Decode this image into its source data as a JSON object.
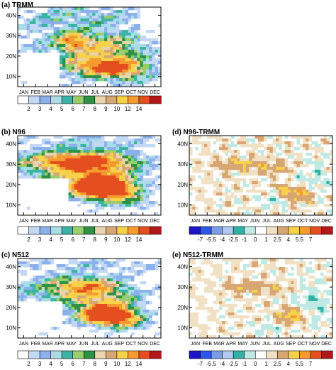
{
  "chart_data": [
    {
      "type": "heatmap",
      "title": "(a) TRMM",
      "x_ticks": [
        "JAN",
        "FEB",
        "MAR",
        "APR",
        "MAY",
        "JUN",
        "JUL",
        "AUG",
        "SEP",
        "OCT",
        "NOV",
        "DEC"
      ],
      "y_ticks": [
        "10N",
        "20N",
        "30N",
        "40N"
      ],
      "ylim": [
        5,
        44
      ],
      "colorbar": {
        "levels": [
          "2",
          "3",
          "4",
          "5",
          "6",
          "7",
          "8",
          "9",
          "10",
          "12",
          "14"
        ]
      },
      "field": "absolute"
    },
    {
      "type": "heatmap",
      "title": "(b) N96",
      "x_ticks": [
        "JAN",
        "FEB",
        "MAR",
        "APR",
        "MAY",
        "JUN",
        "JUL",
        "AUG",
        "SEP",
        "OCT",
        "NOV",
        "DEC"
      ],
      "y_ticks": [
        "10N",
        "20N",
        "30N",
        "40N"
      ],
      "ylim": [
        5,
        44
      ],
      "colorbar": {
        "levels": [
          "2",
          "3",
          "4",
          "5",
          "6",
          "7",
          "8",
          "9",
          "10",
          "12",
          "14"
        ]
      },
      "field": "absolute"
    },
    {
      "type": "heatmap",
      "title": "(c) N512",
      "x_ticks": [
        "JAN",
        "FEB",
        "MAR",
        "APR",
        "MAY",
        "JUN",
        "JUL",
        "AUG",
        "SEP",
        "OCT",
        "NOV",
        "DEC"
      ],
      "y_ticks": [
        "10N",
        "20N",
        "30N",
        "40N"
      ],
      "ylim": [
        5,
        44
      ],
      "colorbar": {
        "levels": [
          "2",
          "3",
          "4",
          "5",
          "6",
          "7",
          "8",
          "9",
          "10",
          "12",
          "14"
        ]
      },
      "field": "absolute"
    },
    {
      "type": "heatmap",
      "title": "(d) N96-TRMM",
      "x_ticks": [
        "JAN",
        "FEB",
        "MAR",
        "APR",
        "MAY",
        "JUN",
        "JUL",
        "AUG",
        "SEP",
        "OCT",
        "NOV",
        "DEC"
      ],
      "y_ticks": [
        "10N",
        "20N",
        "30N",
        "40N"
      ],
      "ylim": [
        5,
        44
      ],
      "colorbar": {
        "levels": [
          "-7",
          "-5.5",
          "-4",
          "-2.5",
          "-1",
          "0",
          "1",
          "2.5",
          "4",
          "5.5",
          "7"
        ]
      },
      "field": "difference"
    },
    {
      "type": "heatmap",
      "title": "(e) N512-TRMM",
      "x_ticks": [
        "JAN",
        "FEB",
        "MAR",
        "APR",
        "MAY",
        "JUN",
        "JUL",
        "AUG",
        "SEP",
        "OCT",
        "NOV",
        "DEC"
      ],
      "y_ticks": [
        "10N",
        "20N",
        "30N",
        "40N"
      ],
      "ylim": [
        5,
        44
      ],
      "colorbar": {
        "levels": [
          "-7",
          "-5.5",
          "-4",
          "-2.5",
          "-1",
          "0",
          "1",
          "2.5",
          "4",
          "5.5",
          "7"
        ]
      },
      "field": "difference"
    }
  ],
  "palettes": {
    "absolute": [
      "#ffffff",
      "#c3d8f5",
      "#8cb0ea",
      "#a9dde6",
      "#3cb3a4",
      "#9acd6c",
      "#2f9145",
      "#e8d4ad",
      "#d7a673",
      "#f6d14a",
      "#f59b2f",
      "#e54e1f",
      "#b3171a"
    ],
    "difference": [
      "#1d16c8",
      "#2e57e8",
      "#7b9de8",
      "#b2c8f0",
      "#2fb3a4",
      "#bfe9e3",
      "#ffffff",
      "#f1e1c4",
      "#d7a673",
      "#f6d14a",
      "#f59b2f",
      "#e54e1f",
      "#b3171a"
    ]
  }
}
